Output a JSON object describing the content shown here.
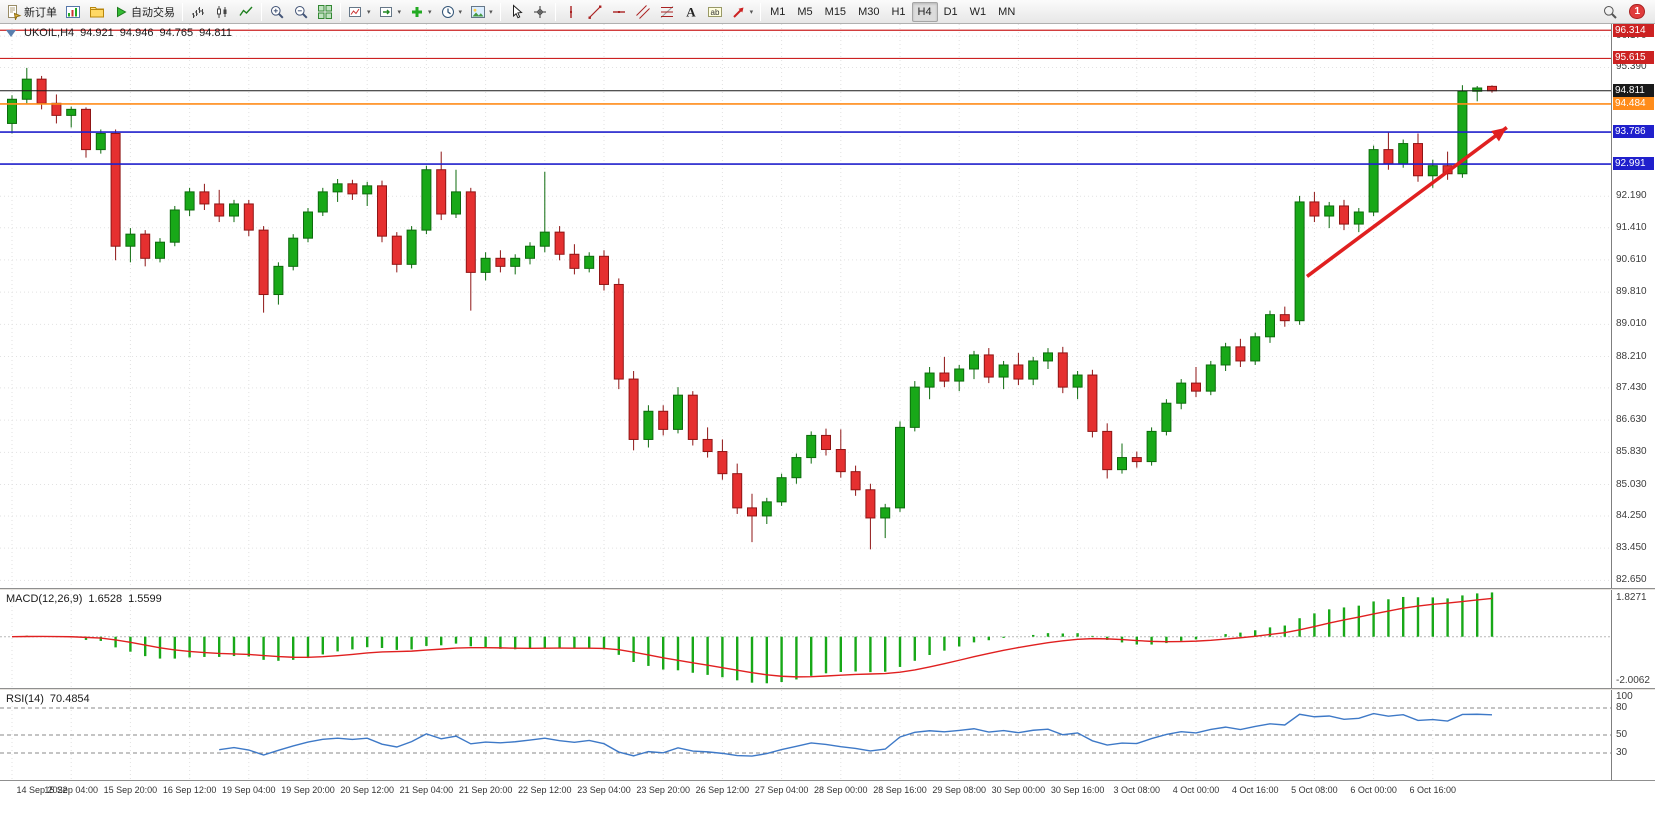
{
  "toolbar": {
    "groups": [
      [
        {
          "name": "new-order",
          "icon": "new-order",
          "label": "新订单"
        },
        {
          "name": "chart-window",
          "icon": "chart-window"
        },
        {
          "name": "profiles",
          "icon": "profiles"
        },
        {
          "name": "autotrading",
          "icon": "autotrading",
          "label": "自动交易"
        }
      ],
      [
        {
          "name": "bar-chart-mode",
          "icon": "bar-chart"
        },
        {
          "name": "candlestick-mode",
          "icon": "candles"
        },
        {
          "name": "line-chart-mode",
          "icon": "line-chart"
        }
      ],
      [
        {
          "name": "zoom-in",
          "icon": "zoom-in"
        },
        {
          "name": "zoom-out",
          "icon": "zoom-out"
        },
        {
          "name": "tile-windows",
          "icon": "tile-windows"
        }
      ],
      [
        {
          "name": "charts-list",
          "icon": "chart-list",
          "dropdown": true
        },
        {
          "name": "chart-shift",
          "icon": "chart-shift",
          "dropdown": true
        },
        {
          "name": "add-indicators",
          "icon": "indicators-add",
          "dropdown": true
        },
        {
          "name": "periods",
          "icon": "periods",
          "dropdown": true
        },
        {
          "name": "templates",
          "icon": "templates",
          "dropdown": true
        }
      ],
      [
        {
          "name": "cursor-tool",
          "icon": "cursor"
        },
        {
          "name": "crosshair-tool",
          "icon": "crosshair"
        }
      ],
      [
        {
          "name": "vertical-line-tool",
          "icon": "vline"
        },
        {
          "name": "trendline-tool",
          "icon": "trendline"
        },
        {
          "name": "horizontal-line-tool",
          "icon": "hline"
        },
        {
          "name": "equidistant-channel-tool",
          "icon": "channel"
        },
        {
          "name": "fibonacci-tool",
          "icon": "fibonacci"
        },
        {
          "name": "text-tool",
          "icon": "text"
        },
        {
          "name": "text-label-tool",
          "icon": "text-label"
        },
        {
          "name": "arrows-tool",
          "icon": "arrows-tool",
          "dropdown": true
        }
      ],
      [
        {
          "name": "timeframe-M1",
          "label": "M1",
          "timeframe": true
        },
        {
          "name": "timeframe-M5",
          "label": "M5",
          "timeframe": true
        },
        {
          "name": "timeframe-M15",
          "label": "M15",
          "timeframe": true
        },
        {
          "name": "timeframe-M30",
          "label": "M30",
          "timeframe": true
        },
        {
          "name": "timeframe-H1",
          "label": "H1",
          "timeframe": true
        },
        {
          "name": "timeframe-H4",
          "label": "H4",
          "timeframe": true
        },
        {
          "name": "timeframe-D1",
          "label": "D1",
          "timeframe": true
        },
        {
          "name": "timeframe-W1",
          "label": "W1",
          "timeframe": true
        },
        {
          "name": "timeframe-MN",
          "label": "MN",
          "timeframe": true
        }
      ]
    ],
    "right": [
      {
        "name": "symbol-search",
        "icon": "search"
      },
      {
        "name": "notifications",
        "badge": "1"
      }
    ],
    "active_timeframe": "H4",
    "notification_count": "1"
  },
  "chart": {
    "title": {
      "symbol_period": "UKOIL,H4",
      "open": "94.921",
      "high": "94.946",
      "low": "94.765",
      "close": "94.811"
    },
    "colors": {
      "up": "#18a818",
      "up_border": "#0d6b0d",
      "down": "#e53030",
      "down_border": "#8f1515",
      "macd": "#18a818",
      "signal": "#e02020",
      "rsi": "#3e79c7",
      "grid": "#e2e2e2"
    }
  },
  "chart_data": {
    "type": "candlestick",
    "symbol": "UKOIL",
    "period": "H4",
    "candles": [
      [
        94.0,
        94.7,
        93.75,
        94.6
      ],
      [
        94.6,
        95.38,
        94.5,
        95.1
      ],
      [
        95.1,
        95.18,
        94.35,
        94.5
      ],
      [
        94.5,
        94.72,
        94.0,
        94.2
      ],
      [
        94.2,
        94.42,
        93.9,
        94.35
      ],
      [
        94.35,
        94.4,
        93.15,
        93.35
      ],
      [
        93.35,
        93.85,
        93.25,
        93.75
      ],
      [
        93.75,
        93.85,
        90.6,
        90.95
      ],
      [
        90.95,
        91.4,
        90.55,
        91.25
      ],
      [
        91.25,
        91.35,
        90.45,
        90.65
      ],
      [
        90.65,
        91.15,
        90.55,
        91.05
      ],
      [
        91.05,
        91.95,
        90.95,
        91.85
      ],
      [
        91.85,
        92.4,
        91.7,
        92.3
      ],
      [
        92.3,
        92.5,
        91.85,
        92.0
      ],
      [
        92.0,
        92.35,
        91.55,
        91.7
      ],
      [
        91.7,
        92.1,
        91.55,
        92.0
      ],
      [
        92.0,
        92.1,
        91.2,
        91.35
      ],
      [
        91.35,
        91.45,
        89.3,
        89.75
      ],
      [
        89.75,
        90.55,
        89.5,
        90.45
      ],
      [
        90.45,
        91.25,
        90.35,
        91.15
      ],
      [
        91.15,
        91.9,
        91.05,
        91.8
      ],
      [
        91.8,
        92.4,
        91.7,
        92.3
      ],
      [
        92.3,
        92.62,
        92.05,
        92.5
      ],
      [
        92.5,
        92.6,
        92.1,
        92.25
      ],
      [
        92.25,
        92.55,
        91.95,
        92.45
      ],
      [
        92.45,
        92.58,
        91.05,
        91.2
      ],
      [
        91.2,
        91.3,
        90.3,
        90.5
      ],
      [
        90.5,
        91.45,
        90.4,
        91.35
      ],
      [
        91.35,
        92.95,
        91.25,
        92.85
      ],
      [
        92.85,
        93.3,
        91.6,
        91.75
      ],
      [
        91.75,
        92.85,
        91.65,
        92.3
      ],
      [
        92.3,
        92.4,
        89.35,
        90.3
      ],
      [
        90.3,
        90.8,
        90.1,
        90.65
      ],
      [
        90.65,
        90.85,
        90.3,
        90.45
      ],
      [
        90.45,
        90.75,
        90.25,
        90.65
      ],
      [
        90.65,
        91.05,
        90.5,
        90.95
      ],
      [
        90.95,
        92.8,
        90.8,
        91.3
      ],
      [
        91.3,
        91.45,
        90.6,
        90.75
      ],
      [
        90.75,
        91.0,
        90.25,
        90.4
      ],
      [
        90.4,
        90.8,
        90.3,
        90.7
      ],
      [
        90.7,
        90.85,
        89.85,
        90.0
      ],
      [
        90.0,
        90.15,
        87.4,
        87.65
      ],
      [
        87.65,
        87.85,
        85.88,
        86.15
      ],
      [
        86.15,
        87.0,
        85.95,
        86.85
      ],
      [
        86.85,
        87.0,
        86.25,
        86.4
      ],
      [
        86.4,
        87.45,
        86.3,
        87.25
      ],
      [
        87.25,
        87.35,
        86.0,
        86.15
      ],
      [
        86.15,
        86.45,
        85.7,
        85.85
      ],
      [
        85.85,
        86.15,
        85.15,
        85.3
      ],
      [
        85.3,
        85.55,
        84.3,
        84.45
      ],
      [
        84.45,
        84.8,
        83.6,
        84.25
      ],
      [
        84.25,
        84.7,
        84.05,
        84.6
      ],
      [
        84.6,
        85.3,
        84.5,
        85.2
      ],
      [
        85.2,
        85.8,
        85.05,
        85.7
      ],
      [
        85.7,
        86.35,
        85.55,
        86.25
      ],
      [
        86.25,
        86.42,
        85.75,
        85.9
      ],
      [
        85.9,
        86.4,
        85.2,
        85.35
      ],
      [
        85.35,
        85.5,
        84.75,
        84.9
      ],
      [
        84.9,
        85.05,
        83.42,
        84.2
      ],
      [
        84.2,
        84.55,
        83.7,
        84.45
      ],
      [
        84.45,
        86.6,
        84.35,
        86.45
      ],
      [
        86.45,
        87.6,
        86.35,
        87.45
      ],
      [
        87.45,
        87.95,
        87.15,
        87.8
      ],
      [
        87.8,
        88.2,
        87.45,
        87.6
      ],
      [
        87.6,
        88.0,
        87.35,
        87.9
      ],
      [
        87.9,
        88.35,
        87.65,
        88.25
      ],
      [
        88.25,
        88.42,
        87.55,
        87.7
      ],
      [
        87.7,
        88.1,
        87.4,
        88.0
      ],
      [
        88.0,
        88.3,
        87.5,
        87.65
      ],
      [
        87.65,
        88.2,
        87.5,
        88.1
      ],
      [
        88.1,
        88.42,
        87.9,
        88.3
      ],
      [
        88.3,
        88.45,
        87.3,
        87.45
      ],
      [
        87.45,
        87.85,
        87.15,
        87.75
      ],
      [
        87.75,
        87.88,
        86.2,
        86.35
      ],
      [
        86.35,
        86.55,
        85.18,
        85.4
      ],
      [
        85.4,
        86.05,
        85.3,
        85.7
      ],
      [
        85.7,
        85.85,
        85.45,
        85.6
      ],
      [
        85.6,
        86.45,
        85.5,
        86.35
      ],
      [
        86.35,
        87.15,
        86.25,
        87.05
      ],
      [
        87.05,
        87.65,
        86.9,
        87.55
      ],
      [
        87.55,
        87.95,
        87.2,
        87.35
      ],
      [
        87.35,
        88.1,
        87.25,
        88.0
      ],
      [
        88.0,
        88.55,
        87.85,
        88.45
      ],
      [
        88.45,
        88.65,
        87.95,
        88.1
      ],
      [
        88.1,
        88.8,
        88.0,
        88.7
      ],
      [
        88.7,
        89.35,
        88.55,
        89.25
      ],
      [
        89.25,
        89.45,
        88.95,
        89.1
      ],
      [
        89.1,
        92.2,
        89.0,
        92.05
      ],
      [
        92.05,
        92.3,
        91.55,
        91.7
      ],
      [
        91.7,
        92.05,
        91.4,
        91.95
      ],
      [
        91.95,
        92.1,
        91.35,
        91.5
      ],
      [
        91.5,
        91.9,
        91.3,
        91.8
      ],
      [
        91.8,
        93.45,
        91.7,
        93.35
      ],
      [
        93.35,
        93.79,
        92.85,
        93.0
      ],
      [
        93.0,
        93.6,
        92.9,
        93.5
      ],
      [
        93.5,
        93.75,
        92.55,
        92.7
      ],
      [
        92.7,
        93.1,
        92.4,
        92.95
      ],
      [
        92.95,
        93.3,
        92.6,
        92.75
      ],
      [
        92.75,
        94.95,
        92.65,
        94.8
      ],
      [
        94.8,
        94.93,
        94.55,
        94.88
      ],
      [
        94.921,
        94.946,
        94.765,
        94.811
      ]
    ],
    "time_labels": [
      "14 Sep 2022",
      "15 Sep 04:00",
      "15 Sep 20:00",
      "16 Sep 12:00",
      "19 Sep 04:00",
      "19 Sep 20:00",
      "20 Sep 12:00",
      "21 Sep 04:00",
      "21 Sep 20:00",
      "22 Sep 12:00",
      "23 Sep 04:00",
      "23 Sep 20:00",
      "26 Sep 12:00",
      "27 Sep 04:00",
      "28 Sep 00:00",
      "28 Sep 16:00",
      "29 Sep 08:00",
      "30 Sep 00:00",
      "30 Sep 16:00",
      "3 Oct 08:00",
      "4 Oct 00:00",
      "4 Oct 16:00",
      "5 Oct 08:00",
      "6 Oct 00:00",
      "6 Oct 16:00"
    ],
    "price_axis": {
      "min": 82.46,
      "max": 96.47,
      "ticks": [
        "96.170",
        "95.390",
        "92.190",
        "91.410",
        "90.610",
        "89.810",
        "89.010",
        "88.210",
        "87.430",
        "86.630",
        "85.830",
        "85.030",
        "84.250",
        "83.450",
        "82.650"
      ]
    },
    "hlines": [
      {
        "price": 96.314,
        "label": "96.314",
        "color": "#cc2222",
        "width": 1.2,
        "role": "resistance"
      },
      {
        "price": 95.615,
        "label": "95.615",
        "color": "#cc2222",
        "width": 1.2,
        "role": "resistance"
      },
      {
        "price": 94.811,
        "label": "94.811",
        "color": "#1a1a1a",
        "width": 1.0,
        "role": "current-price"
      },
      {
        "price": 94.484,
        "label": "94.484",
        "color": "#ff8c1a",
        "width": 1.6,
        "role": "level"
      },
      {
        "price": 93.786,
        "label": "93.786",
        "color": "#2020cc",
        "width": 1.6,
        "role": "support"
      },
      {
        "price": 92.991,
        "label": "92.991",
        "color": "#2020cc",
        "width": 1.6,
        "role": "support"
      }
    ],
    "trend_arrow": {
      "from_candle": 87.5,
      "from_price": 90.2,
      "to_candle": 101,
      "to_price": 93.9,
      "color": "#e02020"
    },
    "indicators": {
      "macd": {
        "label": "MACD(12,26,9)",
        "value_main": "1.6528",
        "value_signal": "1.5599",
        "params": [
          12,
          26,
          9
        ],
        "scale_max": 1.8271,
        "scale_min": -2.0062,
        "scale_max_label": "1.8271",
        "scale_min_label": "-2.0062"
      },
      "rsi": {
        "label": "RSI(14)",
        "value": "70.4854",
        "period": 14,
        "levels": [
          80,
          50,
          30
        ],
        "scale_labels": [
          "100",
          "80",
          "50",
          "30"
        ]
      }
    }
  }
}
